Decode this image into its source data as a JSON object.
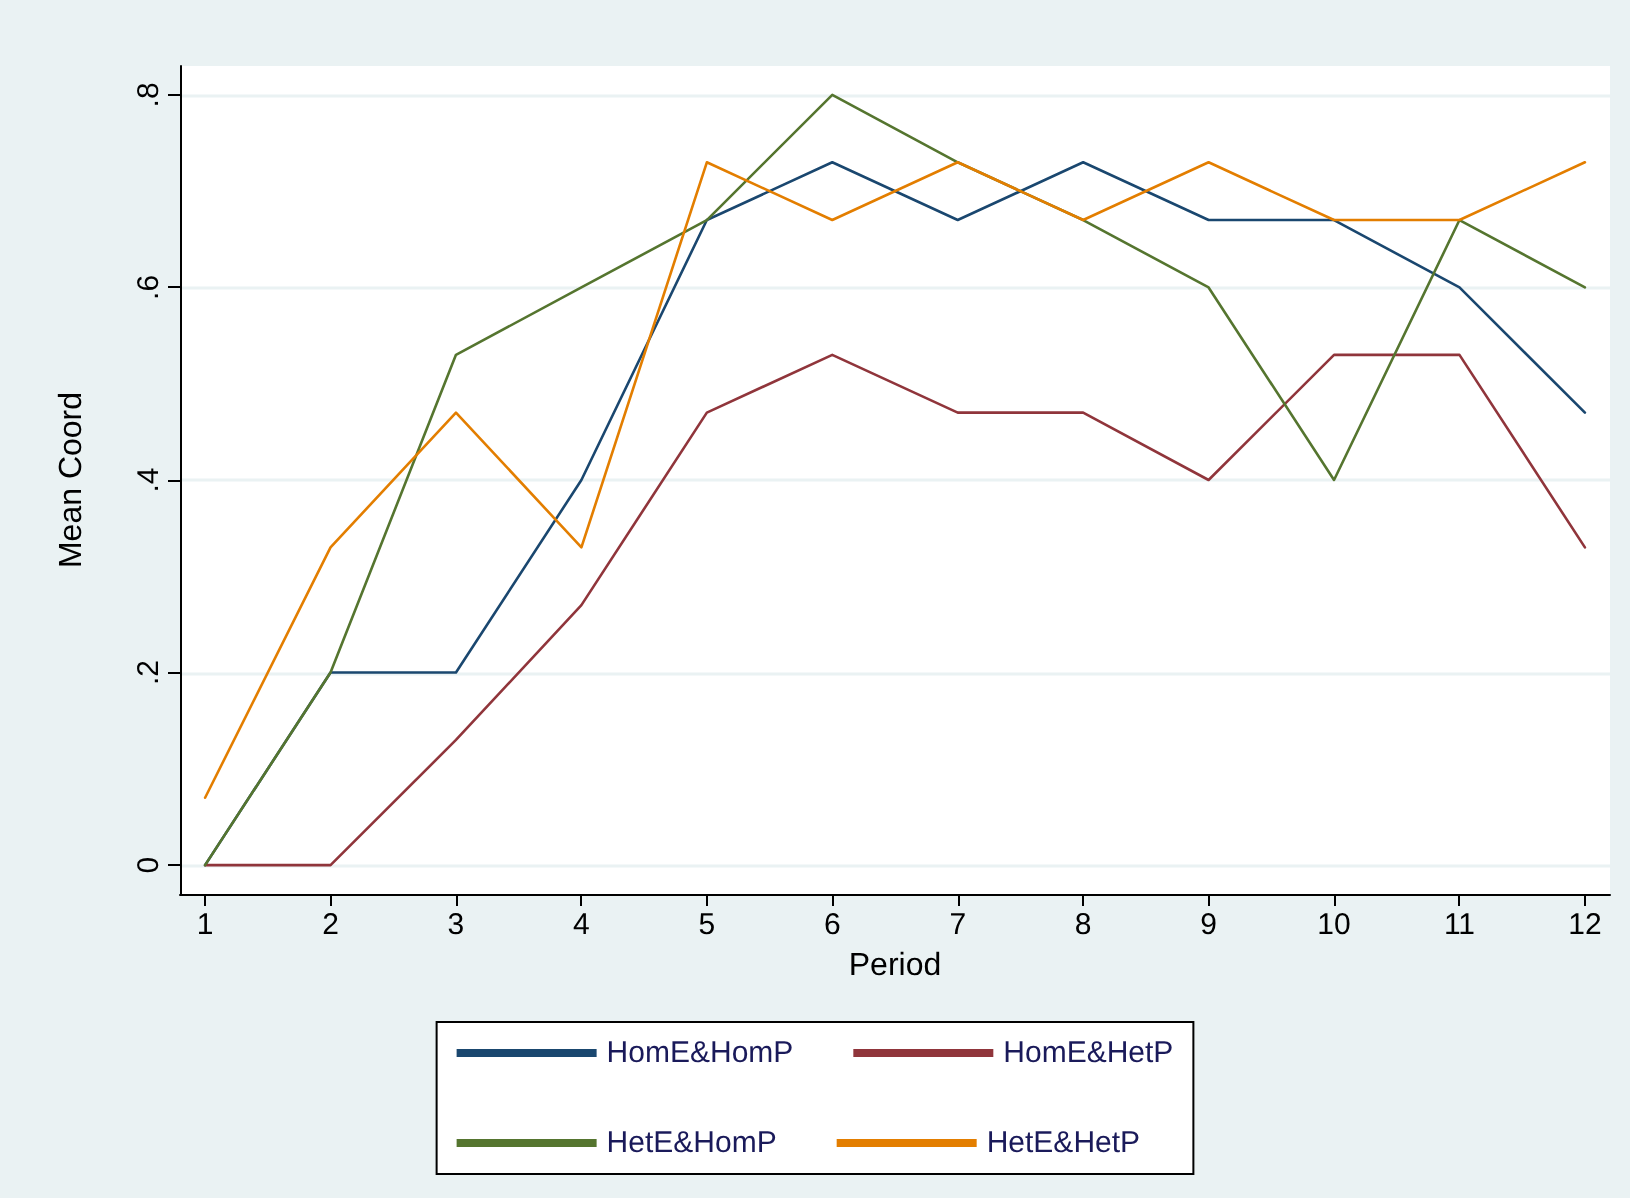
{
  "chart_data": {
    "type": "line",
    "xlabel": "Period",
    "ylabel": "Mean Coord",
    "x": [
      1,
      2,
      3,
      4,
      5,
      6,
      7,
      8,
      9,
      10,
      11,
      12
    ],
    "series": [
      {
        "name": "HomE&HomP",
        "color": "#1a476f",
        "values": [
          0,
          0.2,
          0.2,
          0.4,
          0.67,
          0.73,
          0.67,
          0.73,
          0.67,
          0.67,
          0.6,
          0.47
        ]
      },
      {
        "name": "HomE&HetP",
        "color": "#90353b",
        "values": [
          0,
          0,
          0.13,
          0.27,
          0.47,
          0.53,
          0.47,
          0.47,
          0.4,
          0.53,
          0.53,
          0.33
        ]
      },
      {
        "name": "HetE&HomP",
        "color": "#55752f",
        "values": [
          0,
          0.2,
          0.53,
          0.6,
          0.67,
          0.8,
          0.73,
          0.67,
          0.6,
          0.4,
          0.67,
          0.6
        ]
      },
      {
        "name": "HetE&HetP",
        "color": "#e37e00",
        "values": [
          0.07,
          0.33,
          0.47,
          0.33,
          0.73,
          0.67,
          0.73,
          0.67,
          0.73,
          0.67,
          0.67,
          0.73
        ]
      }
    ],
    "xlim": [
      0.8,
      12.2
    ],
    "xticks": [
      1,
      2,
      3,
      4,
      5,
      6,
      7,
      8,
      9,
      10,
      11,
      12
    ],
    "ylim": [
      -0.03,
      0.83
    ],
    "yticks": [
      {
        "value": 0,
        "label": "0"
      },
      {
        "value": 0.2,
        "label": ".2"
      },
      {
        "value": 0.4,
        "label": ".4"
      },
      {
        "value": 0.6,
        "label": ".6"
      },
      {
        "value": 0.8,
        "label": ".8"
      }
    ],
    "grid": "y",
    "legend": "bottom",
    "marker": "none",
    "line_style": "solid"
  }
}
